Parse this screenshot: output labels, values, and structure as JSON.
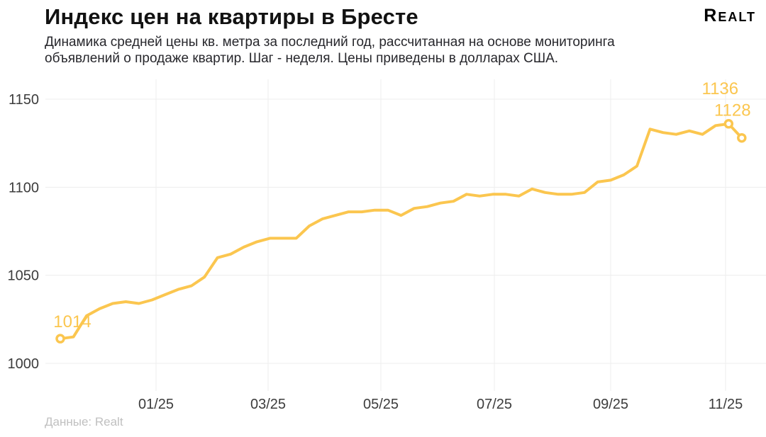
{
  "header": {
    "title": "Индекс цен на квартиры в Бресте",
    "logo": "Realt",
    "subtitle_lines": [
      "Динамика средней цены кв. метра за последний год, рассчитанная на основе мониторинга",
      "объявлений о продаже квартир. Шаг - неделя. Цены приведены в долларах США."
    ]
  },
  "footer": {
    "source": "Данные: Realt"
  },
  "colors": {
    "line": "#fbc64f",
    "point_fill": "#ffffff",
    "annotation": "#fbc64f",
    "grid": "#ededed",
    "tick": "#3c3c3c",
    "title": "#121212",
    "source": "#c0c0c0"
  },
  "chart_data": {
    "type": "line",
    "title": "Индекс цен на квартиры в Бресте",
    "x_unit": "неделя (weekly steps, последний год)",
    "x_tick_labels": [
      "01/25",
      "03/25",
      "05/25",
      "07/25",
      "09/25",
      "11/25"
    ],
    "y_ticks": [
      1000,
      1050,
      1100,
      1150
    ],
    "ylim": [
      985,
      1160
    ],
    "grid": true,
    "legend": false,
    "values": [
      1014,
      1015,
      1027,
      1031,
      1034,
      1035,
      1034,
      1036,
      1039,
      1042,
      1044,
      1049,
      1060,
      1062,
      1066,
      1069,
      1071,
      1071,
      1071,
      1078,
      1082,
      1084,
      1086,
      1086,
      1087,
      1087,
      1084,
      1088,
      1089,
      1091,
      1092,
      1096,
      1095,
      1096,
      1096,
      1095,
      1099,
      1097,
      1096,
      1096,
      1097,
      1103,
      1104,
      1107,
      1112,
      1133,
      1131,
      1130,
      1132,
      1130,
      1135,
      1136,
      1128
    ],
    "labeled_points": [
      {
        "index": 0,
        "label": "1014"
      },
      {
        "index": 51,
        "label": "1136"
      },
      {
        "index": 52,
        "label": "1128"
      }
    ]
  }
}
